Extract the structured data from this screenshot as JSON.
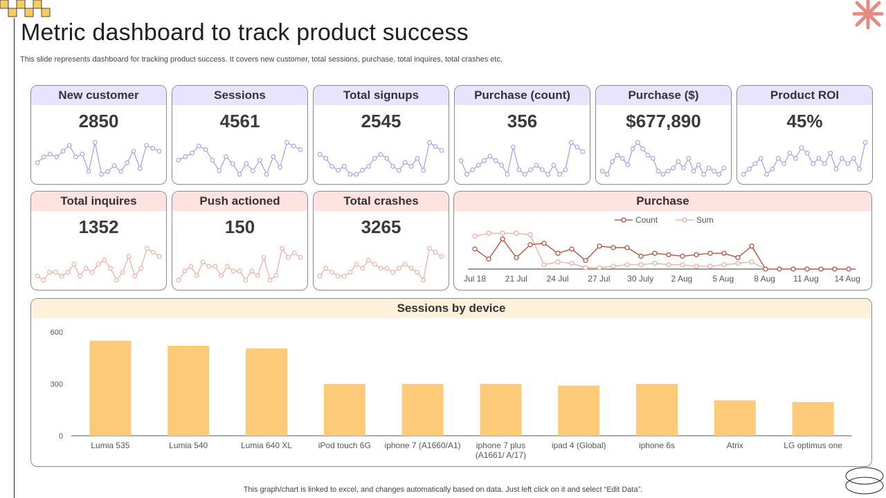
{
  "title": "Metric dashboard to track product success",
  "subtitle": "This slide represents dashboard for tracking product success. It covers new customer, total sessions, purchase, total inquires, total crashes etc.",
  "footnote": "This graph/chart is linked to excel, and changes automatically based on data. Just left click on it and select “Edit Data”.",
  "colors": {
    "purple": "#9f9cf0",
    "pink": "#f2a89e",
    "dark_red": "#b5462e",
    "bar": "#fbcb78"
  },
  "kpis": [
    {
      "label": "New customer",
      "value": "2850",
      "trend": [
        5,
        7,
        8,
        7,
        9,
        11,
        7,
        8,
        2,
        12,
        1,
        2,
        4,
        2,
        5,
        9,
        3,
        11,
        10,
        9
      ]
    },
    {
      "label": "Sessions",
      "value": "4561",
      "trend": [
        4,
        5,
        6,
        8,
        7,
        4,
        1,
        5,
        3,
        0,
        3,
        1,
        4,
        0,
        5,
        2,
        9,
        8,
        7
      ]
    },
    {
      "label": "Total signups",
      "value": "2545",
      "trend": [
        6,
        5,
        3,
        2,
        3,
        1,
        1,
        2,
        3,
        5,
        6,
        5,
        3,
        2,
        4,
        3,
        5,
        2,
        9,
        8,
        7
      ]
    },
    {
      "label": "Purchase (count)",
      "value": "356",
      "trend": [
        4,
        1,
        2,
        3,
        4,
        5,
        4,
        3,
        1,
        7,
        2,
        1,
        2,
        3,
        2,
        1,
        3,
        1,
        2,
        8,
        7,
        6
      ]
    },
    {
      "label": "Purchase ($)",
      "value": "$677,890",
      "trend": [
        3,
        2,
        6,
        8,
        7,
        5,
        10,
        12,
        10,
        8,
        7,
        3,
        2,
        3,
        4,
        6,
        4,
        7,
        3,
        5,
        2,
        4,
        3,
        2,
        4
      ]
    },
    {
      "label": "Product ROI",
      "value": "45%",
      "trend": [
        1,
        2,
        3,
        4,
        1,
        2,
        4,
        3,
        5,
        4,
        6,
        5,
        3,
        4,
        3,
        5,
        2,
        4,
        3,
        4,
        2,
        7
      ]
    }
  ],
  "kpis2": [
    {
      "label": "Total inquires",
      "value": "1352",
      "trend": [
        3,
        2,
        4,
        4,
        3,
        4,
        6,
        3,
        5,
        4,
        6,
        7,
        5,
        2,
        4,
        8,
        3,
        5,
        10,
        9,
        8
      ]
    },
    {
      "label": "Push actioned",
      "value": "150",
      "trend": [
        2,
        4,
        5,
        3,
        6,
        5,
        5,
        3,
        5,
        4,
        4,
        2,
        4,
        3,
        7,
        2,
        3,
        9,
        7,
        8,
        7
      ]
    },
    {
      "label": "Total crashes",
      "value": "3265",
      "trend": [
        2,
        4,
        3,
        2,
        2,
        3,
        5,
        4,
        6,
        5,
        4,
        4,
        3,
        4,
        5,
        4,
        3,
        1,
        9,
        8,
        7
      ]
    }
  ],
  "purchase_chart": {
    "title": "Purchase",
    "legend_count": "Count",
    "legend_sum": "Sum",
    "x_labels": [
      "Jul 18",
      "21 Jul",
      "24 Jul",
      "27 Jul",
      "30 July",
      "2 Aug",
      "5 Aug",
      "8 Aug",
      "11 Aug",
      "14 Aug"
    ],
    "count": [
      14,
      7,
      21,
      8,
      17,
      18,
      11,
      14,
      6,
      16,
      15,
      15,
      9,
      11,
      10,
      9,
      10,
      11,
      11,
      8,
      16,
      0,
      0,
      0,
      0,
      0,
      0,
      0
    ],
    "sum": [
      23,
      25,
      25,
      25,
      24,
      3,
      5,
      4,
      1,
      1,
      2,
      3,
      3,
      4,
      3,
      3,
      2,
      2,
      3,
      4,
      5,
      0,
      0,
      0,
      0,
      0,
      0,
      0
    ]
  },
  "chart_data": {
    "type": "bar",
    "title": "Sessions by device",
    "categories": [
      "Lumia 535",
      "Lumia 540",
      "Lumia 640 XL",
      "iPod touch 6G",
      "iphone 7 (A1660/A1)",
      "iphone 7 plus (A1661/ A/17)",
      "ipad 4 (Global)",
      "iphone 6s",
      "Atrix",
      "LG optimus one"
    ],
    "category_lines": [
      [
        "Lumia 535"
      ],
      [
        "Lumia 540"
      ],
      [
        "Lumia 640 XL"
      ],
      [
        "iPod touch 6G"
      ],
      [
        "iphone 7 (A1660/A1)"
      ],
      [
        "iphone 7 plus",
        "(A1661/ A/17)"
      ],
      [
        "ipad 4 (Global)"
      ],
      [
        "iphone 6s"
      ],
      [
        "Atrix"
      ],
      [
        "LG optimus one"
      ]
    ],
    "values": [
      550,
      520,
      505,
      300,
      300,
      300,
      290,
      300,
      205,
      195
    ],
    "ylim": [
      0,
      600
    ],
    "yticks": [
      "0",
      "300",
      "600"
    ],
    "xlabel": "",
    "ylabel": ""
  }
}
